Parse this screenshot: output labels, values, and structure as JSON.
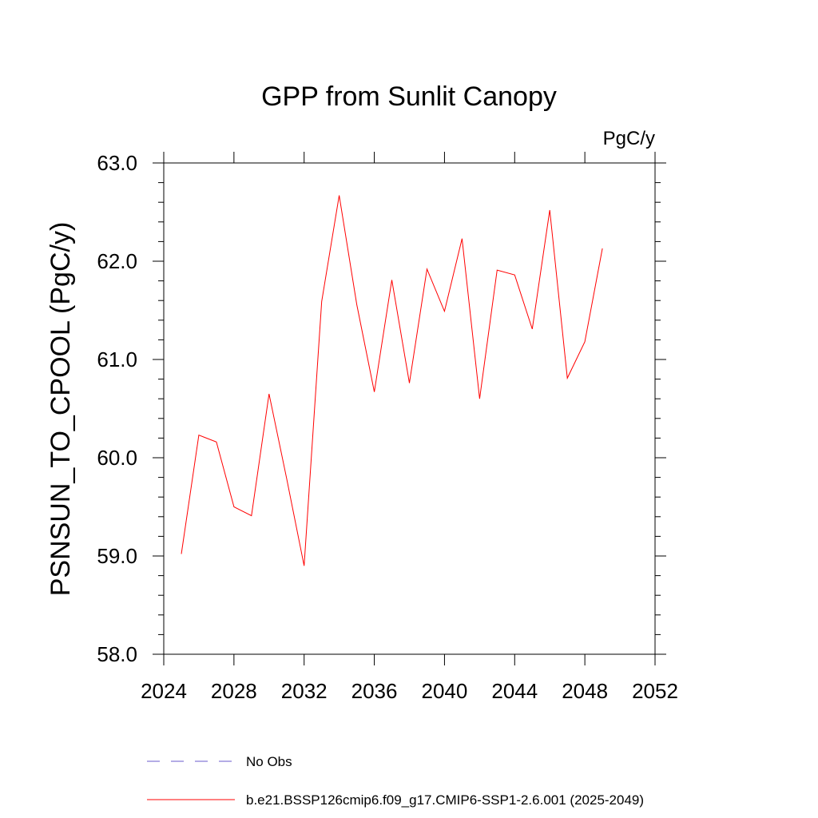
{
  "chart_data": {
    "type": "line",
    "title": "GPP from Sunlit Canopy",
    "units_label": "PgC/y",
    "ylabel": "PSNSUN_TO_CPOOL  (PgC/y)",
    "xlabel": "",
    "xlim": [
      2024,
      2052
    ],
    "ylim": [
      58.0,
      63.0
    ],
    "x_ticks": [
      2024,
      2028,
      2032,
      2036,
      2040,
      2044,
      2048,
      2052
    ],
    "y_ticks": [
      58.0,
      59.0,
      60.0,
      61.0,
      62.0,
      63.0
    ],
    "y_tick_labels": [
      "58.0",
      "59.0",
      "60.0",
      "61.0",
      "62.0",
      "63.0"
    ],
    "series": [
      {
        "name": "b.e21.BSSP126cmip6.f09_g17.CMIP6-SSP1-2.6.001 (2025-2049)",
        "color": "#ff0000",
        "style": "solid",
        "x": [
          2025,
          2026,
          2027,
          2028,
          2029,
          2030,
          2031,
          2032,
          2033,
          2034,
          2035,
          2036,
          2037,
          2038,
          2039,
          2040,
          2041,
          2042,
          2043,
          2044,
          2045,
          2046,
          2047,
          2048,
          2049
        ],
        "values": [
          59.02,
          60.23,
          60.16,
          59.5,
          59.41,
          60.65,
          59.79,
          58.9,
          61.59,
          62.67,
          61.56,
          60.67,
          61.81,
          60.76,
          61.92,
          61.49,
          62.23,
          60.6,
          61.91,
          61.86,
          61.31,
          62.52,
          60.81,
          61.18,
          62.13
        ]
      }
    ],
    "legend": [
      {
        "label": "No Obs",
        "color": "#6a5acd",
        "style": "dashed"
      },
      {
        "label": "b.e21.BSSP126cmip6.f09_g17.CMIP6-SSP1-2.6.001 (2025-2049)",
        "color": "#ff0000",
        "style": "solid"
      }
    ],
    "legend_position": "bottom-left",
    "grid": false
  }
}
